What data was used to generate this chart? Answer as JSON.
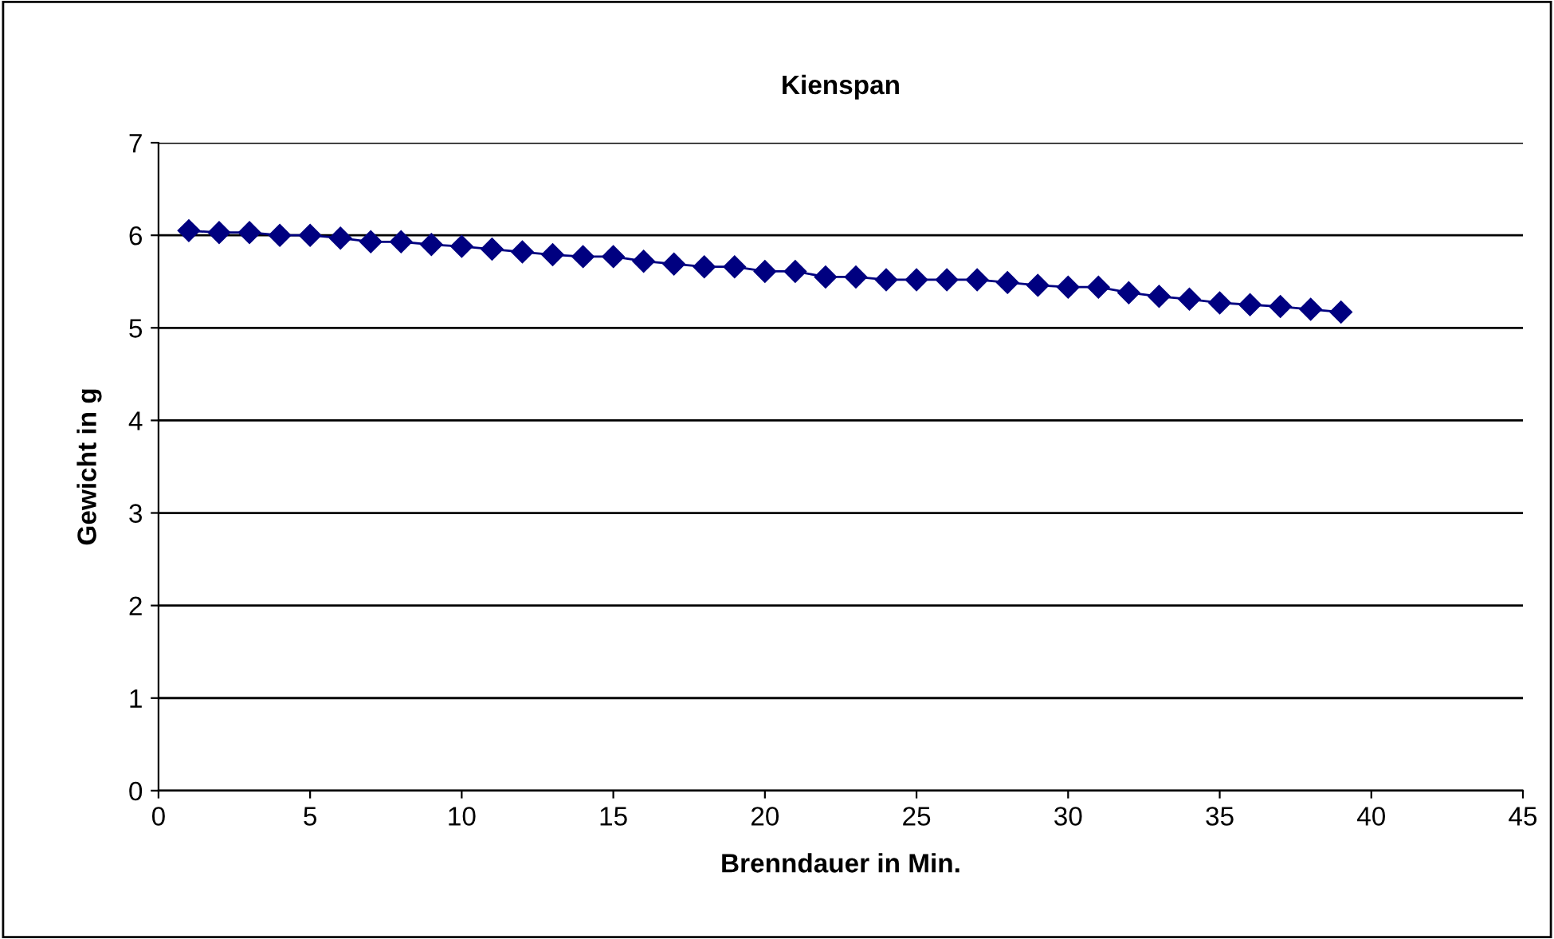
{
  "chart_data": {
    "type": "line",
    "title": "Kienspan",
    "xlabel": "Brenndauer in Min.",
    "ylabel": "Gewicht in g",
    "x": [
      1,
      2,
      3,
      4,
      5,
      6,
      7,
      8,
      9,
      10,
      11,
      12,
      13,
      14,
      15,
      16,
      17,
      18,
      19,
      20,
      21,
      22,
      23,
      24,
      25,
      26,
      27,
      28,
      29,
      30,
      31,
      32,
      33,
      34,
      35,
      36,
      37,
      38,
      39
    ],
    "series": [
      {
        "color": "#000080",
        "values": [
          6.05,
          6.03,
          6.03,
          6.0,
          6.0,
          5.97,
          5.93,
          5.93,
          5.9,
          5.88,
          5.85,
          5.82,
          5.79,
          5.77,
          5.77,
          5.72,
          5.69,
          5.66,
          5.66,
          5.61,
          5.61,
          5.55,
          5.55,
          5.52,
          5.52,
          5.52,
          5.52,
          5.49,
          5.46,
          5.44,
          5.44,
          5.38,
          5.34,
          5.31,
          5.27,
          5.25,
          5.23,
          5.2,
          5.17
        ]
      }
    ],
    "xlim": [
      0,
      45
    ],
    "xticks": [
      0,
      5,
      10,
      15,
      20,
      25,
      30,
      35,
      40,
      45
    ],
    "ylim": [
      0,
      7
    ],
    "yticks": [
      0,
      1,
      2,
      3,
      4,
      5,
      6,
      7
    ],
    "grid": "y",
    "marker": "diamond",
    "line_style": "solid",
    "legend": false
  }
}
